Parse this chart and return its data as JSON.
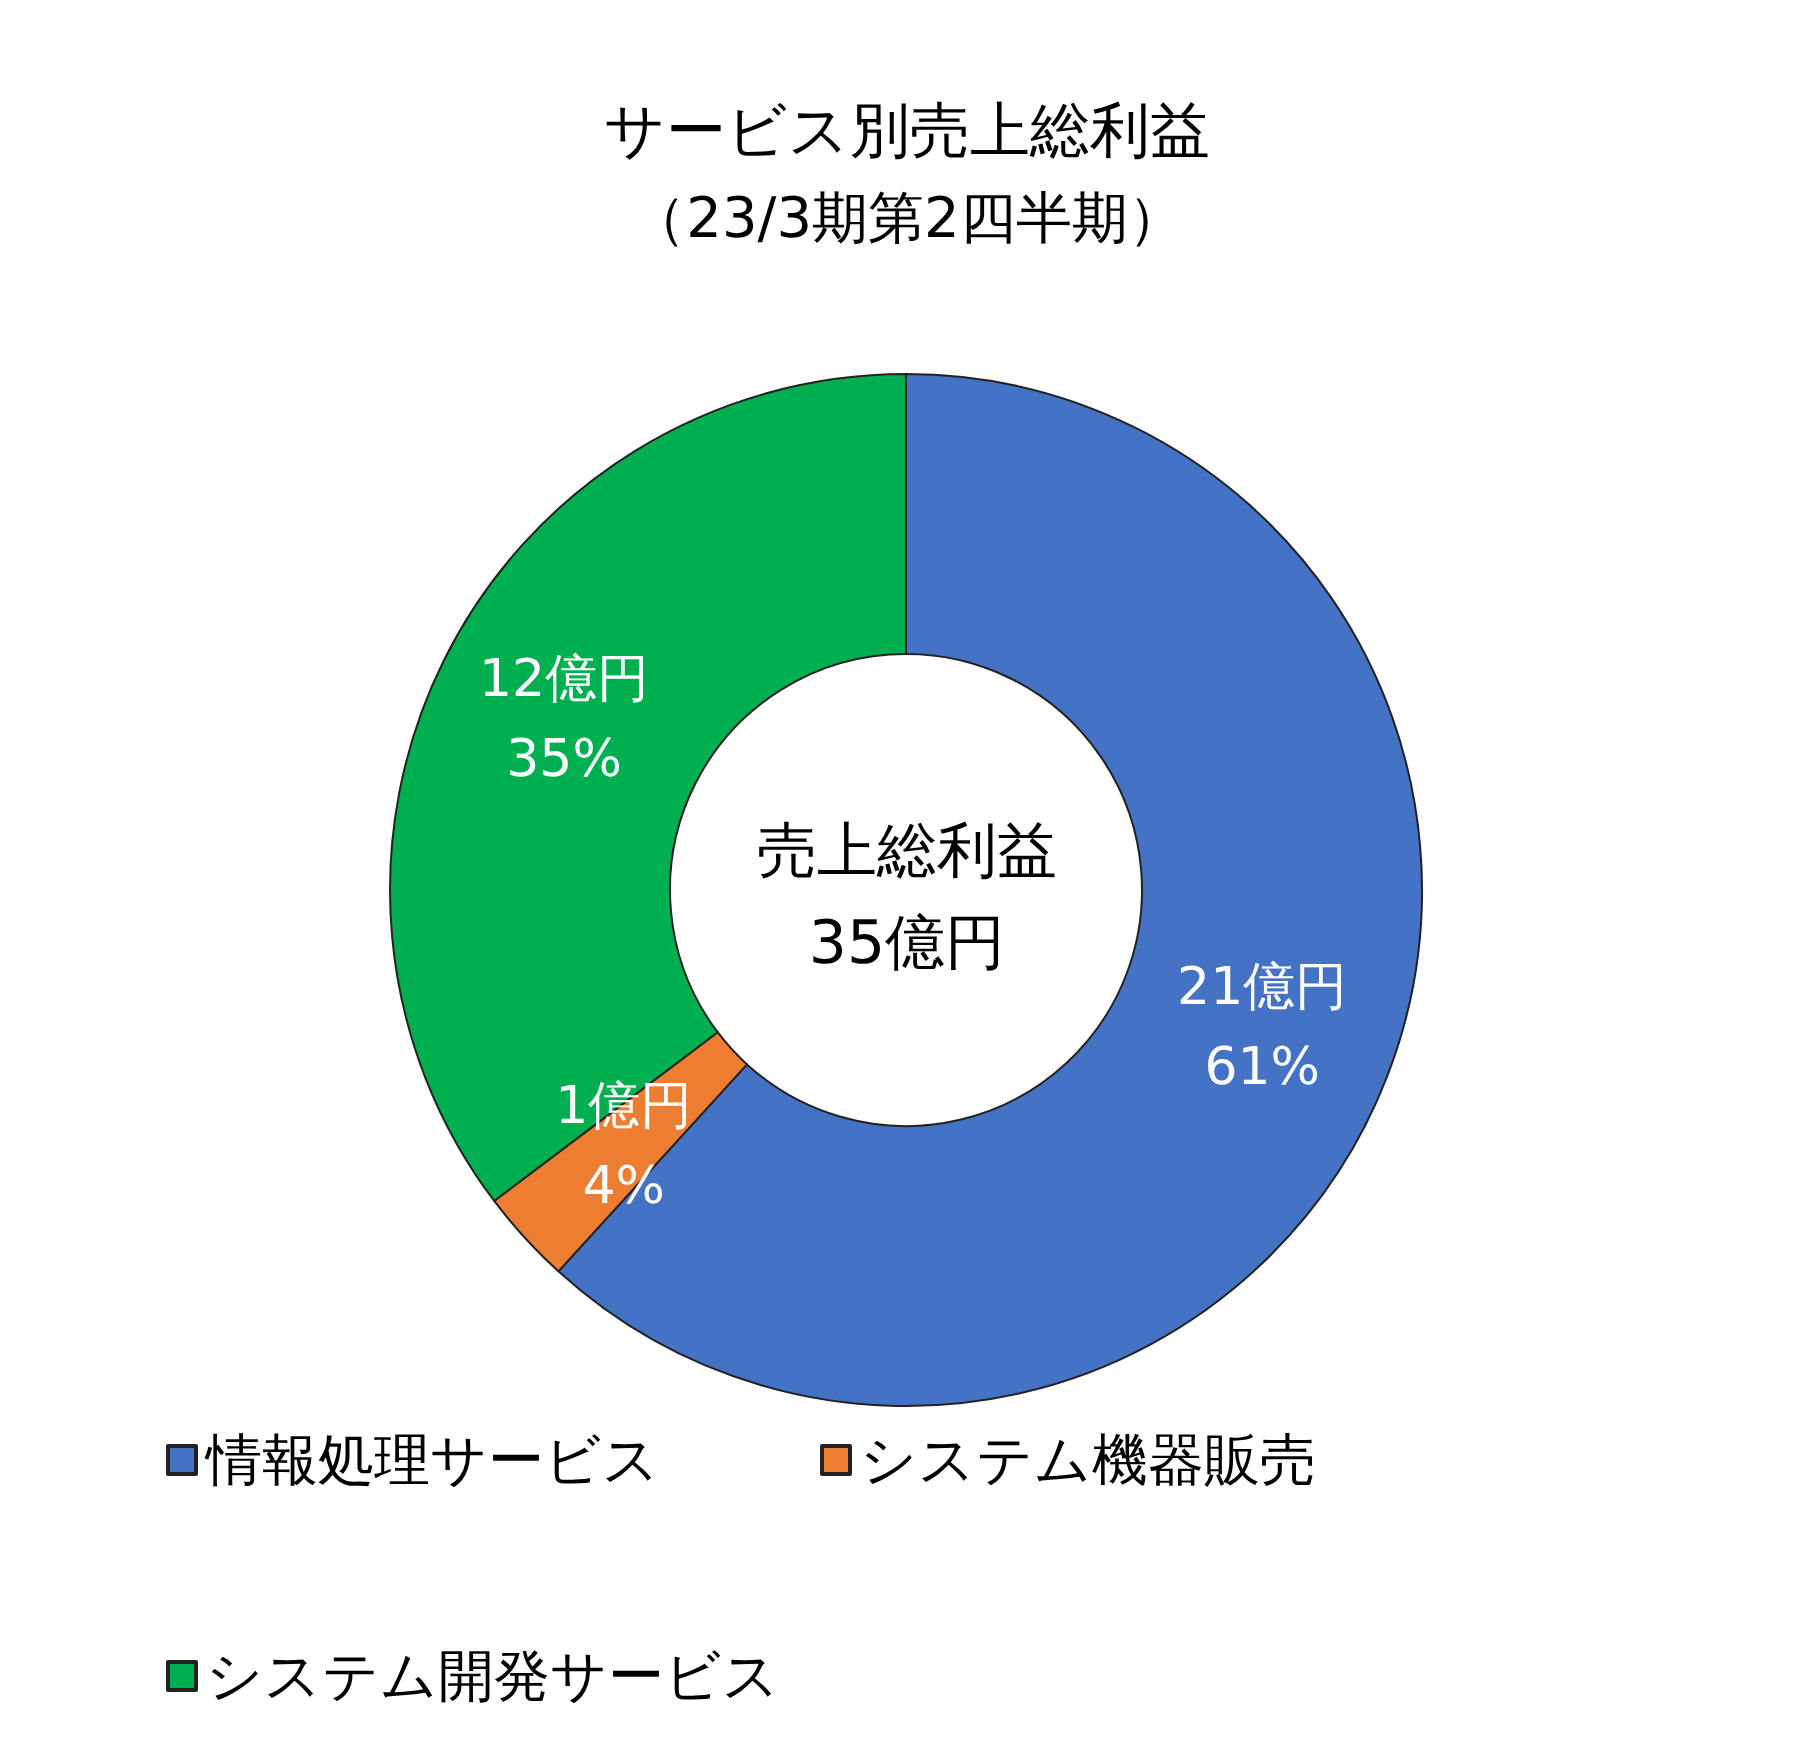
{
  "chart_data": {
    "type": "donut",
    "title": "サービス別売上総利益",
    "subtitle": "（23/3期第2四半期）",
    "categories": [
      "情報処理サービス",
      "システム機器販売",
      "システム開発サービス"
    ],
    "values": [
      21,
      1,
      12
    ],
    "colors": [
      "#4472c4",
      "#ed7d31",
      "#00b050"
    ],
    "value_labels": [
      "21億円\n61%",
      "1億円\n4%",
      "12億円\n35%"
    ],
    "annotations": [
      "売上総利益\n35億円"
    ],
    "legend": "bottom"
  }
}
